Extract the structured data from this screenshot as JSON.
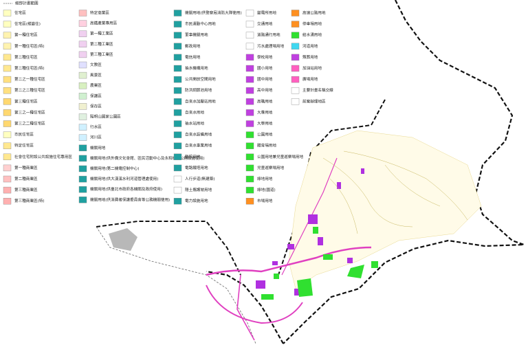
{
  "legend": {
    "title": "細部計畫範圍",
    "columns": [
      [
        {
          "label": "住宅區",
          "color": "#ffffc0"
        },
        {
          "label": "住宅區(維變住)",
          "color": "#ffffc0"
        },
        {
          "label": "第一種住宅區",
          "color": "#fff3b0"
        },
        {
          "label": "第一種住宅區(特)",
          "color": "#fff3b0"
        },
        {
          "label": "第二種住宅區",
          "color": "#ffe890"
        },
        {
          "label": "第二種住宅區(特)",
          "color": "#ffe890"
        },
        {
          "label": "第二之一種住宅區",
          "color": "#ffe080"
        },
        {
          "label": "第二之二種住宅區",
          "color": "#ffe080"
        },
        {
          "label": "第三種住宅區",
          "color": "#ffd870"
        },
        {
          "label": "第三之一種住宅區",
          "color": "#ffd870"
        },
        {
          "label": "第三之二種住宅區",
          "color": "#ffd870"
        },
        {
          "label": "市民住宅區",
          "color": "#ffffc0"
        },
        {
          "label": "特定住宅區",
          "color": "#ffe890"
        },
        {
          "label": "社會住宅附設公共設施住宅專用區",
          "color": "#ffe890"
        },
        {
          "label": "第一種商業區",
          "color": "#ffd0d0"
        },
        {
          "label": "第二種商業區",
          "color": "#ffc0c0"
        },
        {
          "label": "第三種商業區",
          "color": "#ffb0b0"
        },
        {
          "label": "第三種商業區(特)",
          "color": "#ffb0b0"
        }
      ],
      [
        {
          "label": "特定商業區",
          "color": "#ffc0c0"
        },
        {
          "label": "高鐵產業專用區",
          "color": "#ffd0e0"
        },
        {
          "label": "第一種工業區",
          "color": "#f0d0f0"
        },
        {
          "label": "第二種工業區",
          "color": "#f0d0f0"
        },
        {
          "label": "第三種工業區",
          "color": "#f0d0f0"
        },
        {
          "label": "文教區",
          "color": "#e0e0ff"
        },
        {
          "label": "風景區",
          "color": "#e0f0d0"
        },
        {
          "label": "農業區",
          "color": "#d8f0c0"
        },
        {
          "label": "保護區",
          "color": "#d0f0d0"
        },
        {
          "label": "保存區",
          "color": "#f0f0d0"
        },
        {
          "label": "陽明山國家公園區",
          "color": "#e0f0e0"
        },
        {
          "label": "行水區",
          "color": "#d0f0ff"
        },
        {
          "label": "河川區",
          "color": "#d0f0ff"
        },
        {
          "label": "機關用地",
          "color": "#20a0a0"
        },
        {
          "label": "機關用地(供外僑文化會館、區民活動中心及永和機關公務設施使用)",
          "color": "#20a0a0"
        },
        {
          "label": "機關用地(第二機電控制中心)",
          "color": "#20a0a0"
        },
        {
          "label": "機關用地(供大漢溪水利河道管理處使用)",
          "color": "#20a0a0"
        },
        {
          "label": "機關用地(供臺北市政府各機關及政府使用)",
          "color": "#20a0a0"
        },
        {
          "label": "機關用地(供消費者保護委員會等公務機關使用)",
          "color": "#20a0a0"
        }
      ],
      [
        {
          "label": "機關用地(供警察局消防大隊使用)",
          "color": "#20a0a0"
        },
        {
          "label": "市民運動中心用地",
          "color": "#20a0a0"
        },
        {
          "label": "軍事機關用地",
          "color": "#20a0a0"
        },
        {
          "label": "郵政用地",
          "color": "#20a0a0"
        },
        {
          "label": "電信用地",
          "color": "#20a0a0"
        },
        {
          "label": "抽水機構用地",
          "color": "#20a0a0"
        },
        {
          "label": "公共開放空間用地",
          "color": "#20a0a0"
        },
        {
          "label": "防洪調節池用地",
          "color": "#20a0a0"
        },
        {
          "label": "自來水加壓站用地",
          "color": "#20a0a0"
        },
        {
          "label": "自來水用地",
          "color": "#20a0a0"
        },
        {
          "label": "抽水站用地",
          "color": "#20a0a0"
        },
        {
          "label": "自來水設備用地",
          "color": "#20a0a0"
        },
        {
          "label": "自來水事業用地",
          "color": "#20a0a0"
        },
        {
          "label": "醫院用地",
          "color": "#20a0a0"
        },
        {
          "label": "電路鐵塔用地",
          "color": "#20a0a0"
        },
        {
          "label": "人行步道(無建築)",
          "color": "#ffffff"
        },
        {
          "label": "隱土攜護坡用地",
          "color": "#ffffff"
        },
        {
          "label": "電力設施用地",
          "color": "#20a0a0"
        }
      ],
      [
        {
          "label": "變電所用地",
          "color": "#ffffff"
        },
        {
          "label": "交通用地",
          "color": "#ffffff"
        },
        {
          "label": "道路通行用地",
          "color": "#ffffff"
        },
        {
          "label": "污水處理場用地",
          "color": "#ffffff"
        },
        {
          "label": "學校用地",
          "color": "#c040e0"
        },
        {
          "label": "國小用地",
          "color": "#c040e0"
        },
        {
          "label": "國中用地",
          "color": "#c040e0"
        },
        {
          "label": "高中用地",
          "color": "#c040e0"
        },
        {
          "label": "高職用地",
          "color": "#c040e0"
        },
        {
          "label": "大專用地",
          "color": "#c040e0"
        },
        {
          "label": "大學用地",
          "color": "#c040e0"
        },
        {
          "label": "公園用地",
          "color": "#30e030"
        },
        {
          "label": "體育場用地",
          "color": "#30e030"
        },
        {
          "label": "公園用地兼兒童遊樂場用地",
          "color": "#30e030"
        },
        {
          "label": "兒童遊樂場用地",
          "color": "#30e030"
        },
        {
          "label": "綠地用地",
          "color": "#30e030"
        },
        {
          "label": "綠地(園道)",
          "color": "#30e030"
        },
        {
          "label": "市場用地",
          "color": "#ff9020"
        }
      ],
      [
        {
          "label": "高速公路用地",
          "color": "#ff9020"
        },
        {
          "label": "停車場用地",
          "color": "#ff9020"
        },
        {
          "label": "給水湧用地",
          "color": "#30e030"
        },
        {
          "label": "河道用地",
          "color": "#40d8f0"
        },
        {
          "label": "殯葬用地",
          "color": "#c040e0"
        },
        {
          "label": "加油站用地",
          "color": "#ff60c0"
        },
        {
          "label": "廣場用地",
          "color": "#ff60c0"
        },
        {
          "label": "主要計畫名稱交線",
          "color": "#ffffff"
        },
        {
          "label": "前案辦理地區",
          "color": "#ffffff"
        }
      ]
    ]
  }
}
